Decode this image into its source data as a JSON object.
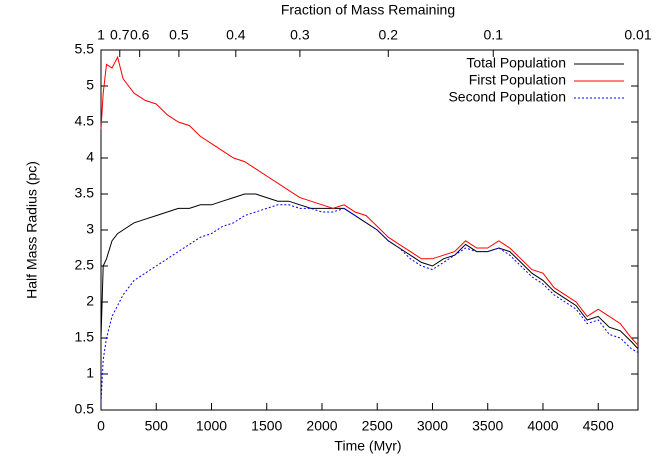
{
  "chart_data": {
    "type": "line",
    "xlabel": "Time (Myr)",
    "ylabel": "Half Mass Radius (pc)",
    "x2label": "Fraction of Mass Remaining",
    "xlim": [
      0,
      4860
    ],
    "ylim": [
      0.5,
      5.5
    ],
    "xticks": [
      0,
      500,
      1000,
      1500,
      2000,
      2500,
      3000,
      3500,
      4000,
      4500
    ],
    "yticks": [
      0.5,
      1,
      1.5,
      2,
      2.5,
      3,
      3.5,
      4,
      4.5,
      5,
      5.5
    ],
    "x2ticks": [
      {
        "value": 0,
        "label": "1"
      },
      {
        "value": 170,
        "label": "0.7"
      },
      {
        "value": 350,
        "label": "0.6"
      },
      {
        "value": 705,
        "label": "0.5"
      },
      {
        "value": 1220,
        "label": "0.4"
      },
      {
        "value": 1800,
        "label": "0.3"
      },
      {
        "value": 2600,
        "label": "0.2"
      },
      {
        "value": 3550,
        "label": "0.1"
      },
      {
        "value": 4860,
        "label": "0.01"
      }
    ],
    "grid": false,
    "legend": "upper right",
    "x": [
      0,
      20,
      50,
      100,
      150,
      200,
      300,
      400,
      500,
      600,
      700,
      800,
      900,
      1000,
      1100,
      1200,
      1300,
      1400,
      1500,
      1600,
      1700,
      1800,
      1900,
      2000,
      2100,
      2200,
      2300,
      2400,
      2500,
      2600,
      2700,
      2800,
      2900,
      3000,
      3100,
      3200,
      3300,
      3400,
      3500,
      3600,
      3700,
      3800,
      3900,
      4000,
      4100,
      4200,
      4300,
      4400,
      4500,
      4600,
      4700,
      4800,
      4860
    ],
    "series": [
      {
        "name": "Total Population",
        "color": "#000000",
        "dash": "none",
        "values": [
          1.5,
          2.5,
          2.6,
          2.85,
          2.95,
          3.0,
          3.1,
          3.15,
          3.2,
          3.25,
          3.3,
          3.3,
          3.35,
          3.35,
          3.4,
          3.45,
          3.5,
          3.5,
          3.45,
          3.4,
          3.4,
          3.35,
          3.3,
          3.3,
          3.3,
          3.3,
          3.2,
          3.1,
          3.0,
          2.85,
          2.75,
          2.65,
          2.55,
          2.5,
          2.6,
          2.65,
          2.8,
          2.7,
          2.7,
          2.75,
          2.7,
          2.55,
          2.4,
          2.3,
          2.15,
          2.05,
          1.95,
          1.75,
          1.8,
          1.65,
          1.6,
          1.45,
          1.35
        ]
      },
      {
        "name": "First Population",
        "color": "#ff0000",
        "dash": "none",
        "values": [
          4.4,
          4.9,
          5.3,
          5.25,
          5.4,
          5.1,
          4.9,
          4.8,
          4.75,
          4.6,
          4.5,
          4.45,
          4.3,
          4.2,
          4.1,
          4.0,
          3.95,
          3.85,
          3.75,
          3.65,
          3.55,
          3.45,
          3.4,
          3.35,
          3.3,
          3.35,
          3.25,
          3.2,
          3.05,
          2.9,
          2.8,
          2.7,
          2.6,
          2.6,
          2.65,
          2.7,
          2.85,
          2.75,
          2.75,
          2.85,
          2.75,
          2.6,
          2.45,
          2.4,
          2.2,
          2.1,
          2.0,
          1.8,
          1.9,
          1.8,
          1.7,
          1.5,
          1.4
        ]
      },
      {
        "name": "Second Population",
        "color": "#0000ff",
        "dash": "2 2",
        "values": [
          0.6,
          1.2,
          1.5,
          1.8,
          1.95,
          2.1,
          2.3,
          2.4,
          2.5,
          2.6,
          2.7,
          2.8,
          2.9,
          2.95,
          3.05,
          3.1,
          3.2,
          3.25,
          3.3,
          3.35,
          3.35,
          3.3,
          3.3,
          3.25,
          3.25,
          3.3,
          3.2,
          3.1,
          3.0,
          2.85,
          2.75,
          2.6,
          2.5,
          2.45,
          2.55,
          2.65,
          2.75,
          2.7,
          2.7,
          2.75,
          2.65,
          2.5,
          2.35,
          2.25,
          2.1,
          2.0,
          1.9,
          1.7,
          1.75,
          1.55,
          1.5,
          1.35,
          1.3
        ]
      }
    ]
  }
}
